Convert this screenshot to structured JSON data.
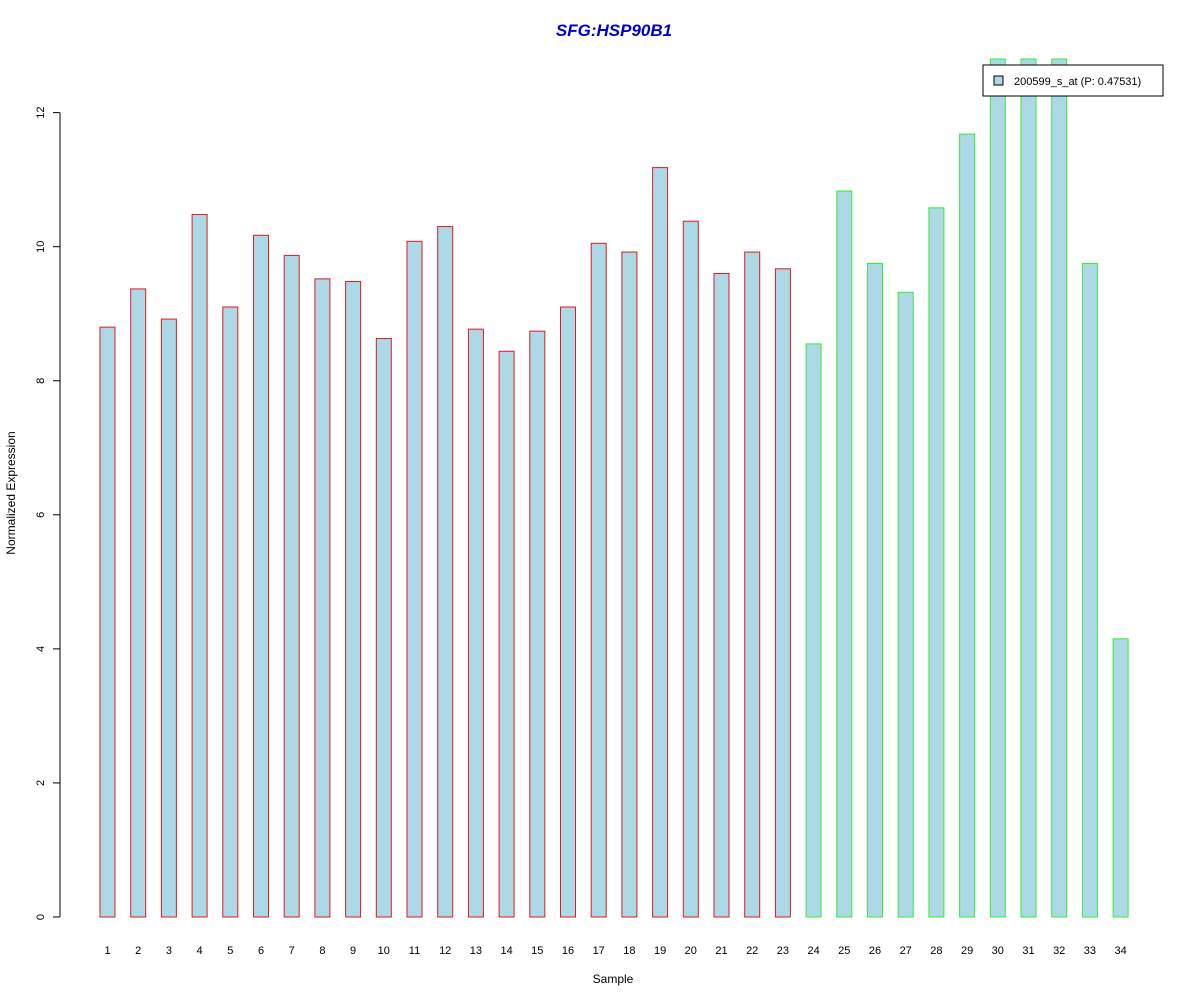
{
  "chart_data": {
    "type": "bar",
    "title": "SFG:HSP90B1",
    "xlabel": "Sample",
    "ylabel": "Normalized Expression",
    "ylim": [
      0,
      12.8
    ],
    "yticks": [
      0,
      2,
      4,
      6,
      8,
      10,
      12
    ],
    "grid": false,
    "legend_position": "top-right",
    "categories": [
      "1",
      "2",
      "3",
      "4",
      "5",
      "6",
      "7",
      "8",
      "9",
      "10",
      "11",
      "12",
      "13",
      "14",
      "15",
      "16",
      "17",
      "18",
      "19",
      "20",
      "21",
      "22",
      "23",
      "24",
      "25",
      "26",
      "27",
      "28",
      "29",
      "30",
      "31",
      "32",
      "33",
      "34"
    ],
    "series": [
      {
        "name": "200599_s_at (P: 0.47531)",
        "values": [
          8.8,
          9.37,
          8.92,
          10.48,
          9.1,
          10.17,
          9.87,
          9.52,
          9.48,
          8.63,
          10.08,
          10.3,
          8.77,
          8.44,
          8.74,
          9.1,
          10.05,
          9.92,
          11.18,
          10.38,
          9.6,
          9.92,
          9.67,
          8.55,
          10.83,
          9.75,
          9.32,
          10.58,
          11.68,
          12.8,
          12.8,
          12.8,
          9.75,
          4.15
        ]
      }
    ],
    "group_colors": [
      "#e31a1c",
      "#e31a1c",
      "#e31a1c",
      "#e31a1c",
      "#e31a1c",
      "#e31a1c",
      "#e31a1c",
      "#e31a1c",
      "#e31a1c",
      "#e31a1c",
      "#e31a1c",
      "#e31a1c",
      "#e31a1c",
      "#e31a1c",
      "#e31a1c",
      "#e31a1c",
      "#e31a1c",
      "#e31a1c",
      "#e31a1c",
      "#e31a1c",
      "#e31a1c",
      "#e31a1c",
      "#e31a1c",
      "#33ee33",
      "#33ee33",
      "#33ee33",
      "#33ee33",
      "#33ee33",
      "#33ee33",
      "#33ee33",
      "#33ee33",
      "#33ee33",
      "#33ee33",
      "#33ee33"
    ],
    "bar_fill": "#add8e6",
    "title_color": "#0000cc"
  }
}
